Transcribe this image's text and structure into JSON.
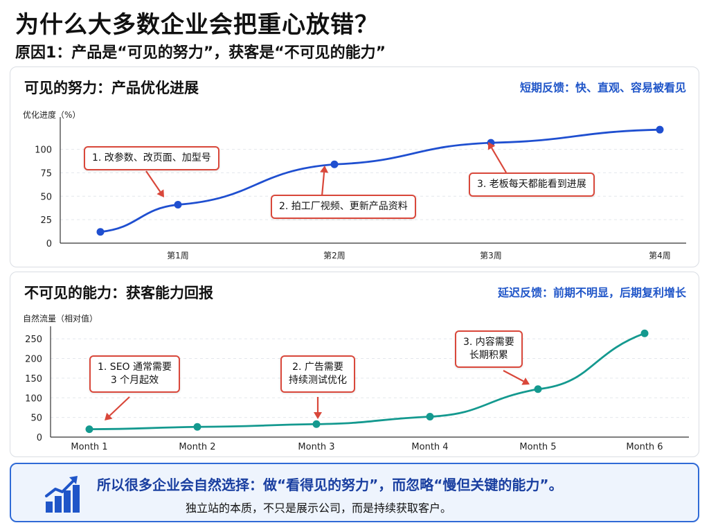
{
  "header": {
    "title": "为什么大多数企业会把重心放错？",
    "subtitle": "原因1：产品是“可见的努力”，获客是“不可见的能力”"
  },
  "chart_data": [
    {
      "type": "line",
      "title": "可见的努力：产品优化进展",
      "note": "短期反馈：快、直观、容易被看见",
      "ylabel": "优化进度（%）",
      "categories": [
        "第1周",
        "第2周",
        "第3周",
        "第4周"
      ],
      "x": [
        0.5,
        1,
        2,
        3,
        4
      ],
      "values": [
        12,
        41,
        84,
        107,
        121
      ],
      "yticks": [
        0,
        25,
        50,
        75,
        100
      ],
      "ylim": [
        0,
        130
      ],
      "color": "#1f4fd0",
      "callouts": [
        {
          "text": "1. 改参数、改页面、加型号"
        },
        {
          "text": "2. 拍工厂视频、更新产品资料"
        },
        {
          "text": "3. 老板每天都能看到进展"
        }
      ]
    },
    {
      "type": "line",
      "title": "不可见的能力：获客能力回报",
      "note": "延迟反馈：前期不明显，后期复利增长",
      "ylabel": "自然流量（相对值）",
      "categories": [
        "Month 1",
        "Month 2",
        "Month 3",
        "Month 4",
        "Month 5",
        "Month 6"
      ],
      "values": [
        20,
        26,
        33,
        52,
        122,
        264
      ],
      "yticks": [
        0,
        50,
        100,
        150,
        200,
        250
      ],
      "ylim": [
        0,
        275
      ],
      "color": "#14998f",
      "callouts": [
        {
          "text": "1. SEO 通常需要\n3 个月起效"
        },
        {
          "text": "2. 广告需要\n持续测试优化"
        },
        {
          "text": "3. 内容需要\n长期积累"
        }
      ]
    }
  ],
  "footer": {
    "main": "所以很多企业会自然选择：做“看得见的努力”，而忽略“慢但关键的能力”。",
    "sub": "独立站的本质，不只是展示公司，而是持续获取客户。",
    "icon": "growth-chart-icon",
    "accent": "#1f55c8"
  }
}
